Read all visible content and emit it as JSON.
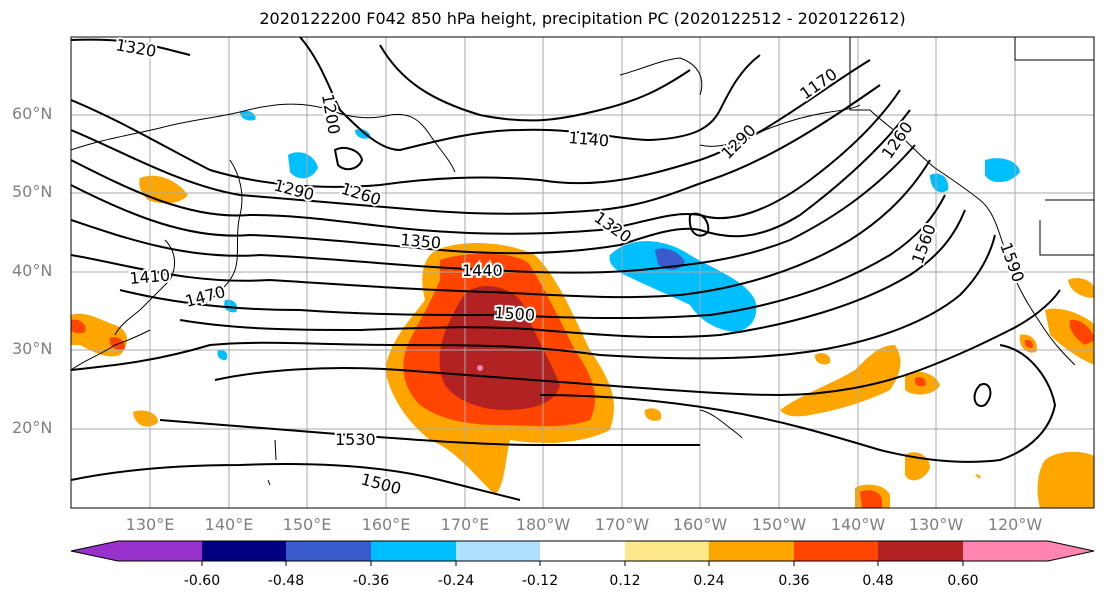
{
  "title": "2020122200 F042 850 hPa height, precipitation PC (2020122512 - 2020122612)",
  "lat_labels": [
    "60°N",
    "50°N",
    "40°N",
    "30°N",
    "20°N"
  ],
  "lon_labels": [
    "130°E",
    "140°E",
    "150°E",
    "160°E",
    "170°E",
    "180°W",
    "170°W",
    "160°W",
    "150°W",
    "140°W",
    "130°W",
    "120°W"
  ],
  "contour_labels": [
    "1320",
    "1200",
    "1140",
    "1170",
    "1290",
    "1290",
    "1260",
    "1350",
    "1320",
    "1410",
    "1470",
    "1440",
    "1500",
    "1560",
    "1590",
    "1530",
    "1500",
    "1260"
  ],
  "colorbar": {
    "ticks": [
      "-0.60",
      "-0.48",
      "-0.36",
      "-0.24",
      "-0.12",
      "0.12",
      "0.24",
      "0.36",
      "0.48",
      "0.60"
    ],
    "colors": [
      "#9932cc",
      "#000080",
      "#3a5bcc",
      "#00bfff",
      "#afe0ff",
      "#ffffff",
      "#ffe88a",
      "#ffa500",
      "#ff4500",
      "#b22222",
      "#ff85b0"
    ]
  }
}
